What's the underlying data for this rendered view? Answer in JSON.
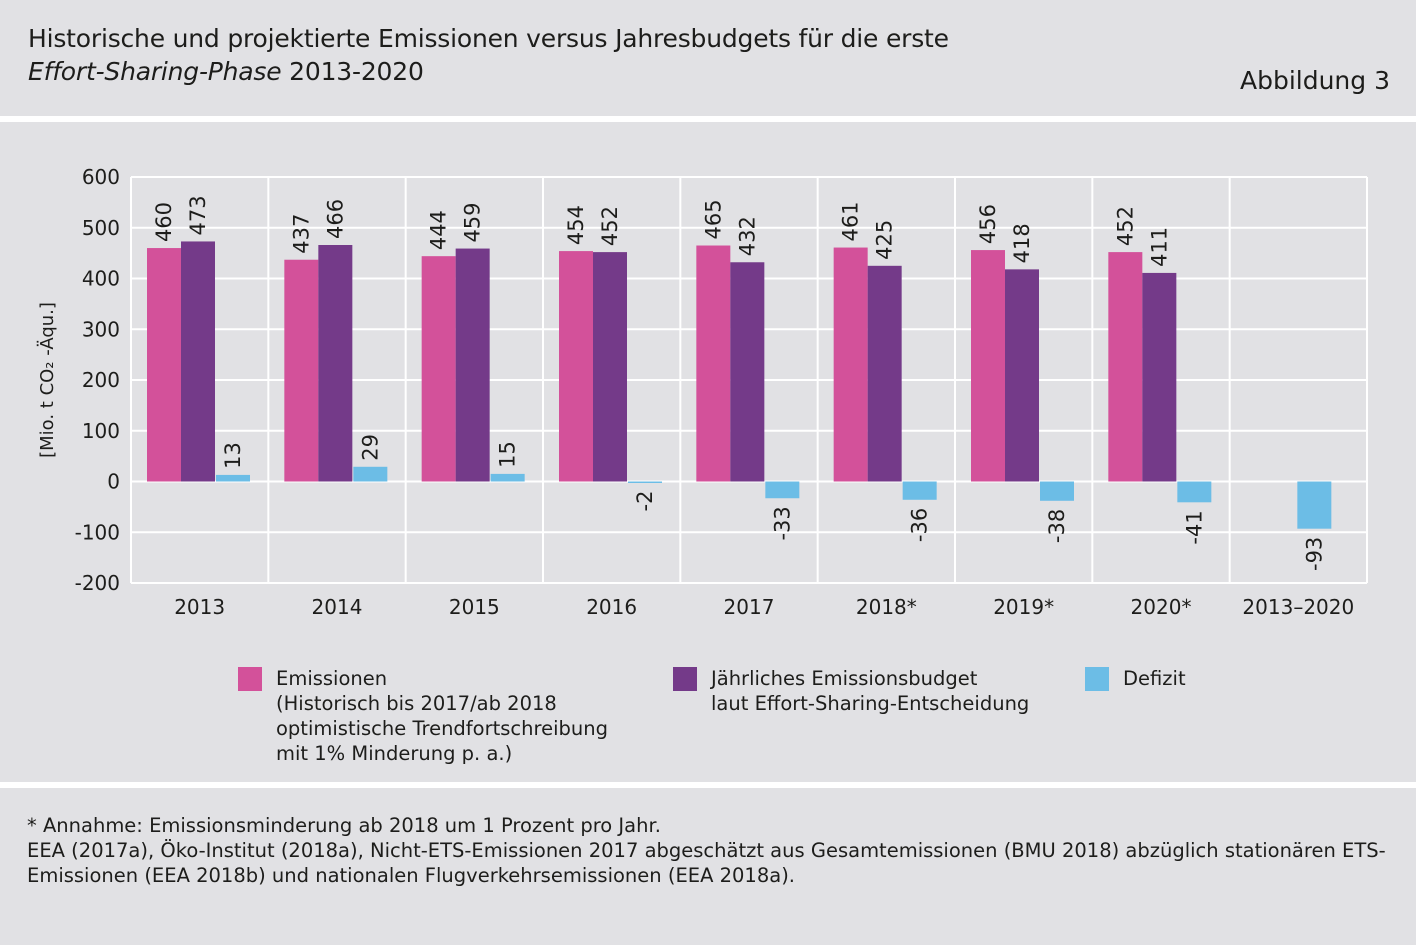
{
  "header": {
    "title_line1": "Historische und projektierte Emissionen versus Jahresbudgets für die erste",
    "title_line2_italic": "Effort-Sharing-Phase",
    "title_line2_rest": " 2013-2020",
    "figure_label": "Abbildung 3"
  },
  "legend": {
    "emissions": {
      "lines": [
        "Emissionen",
        "(Historisch bis 2017/ab 2018",
        "optimistische Trendfortschreibung",
        "mit 1% Minderung p. a.)"
      ],
      "color": "#d3519a"
    },
    "budget": {
      "lines": [
        "Jährliches Emissionsbudget",
        "laut Effort-Sharing-Entscheidung"
      ],
      "color": "#743a89"
    },
    "deficit": {
      "lines": [
        "Defizit"
      ],
      "color": "#6cbde6"
    }
  },
  "chart_data": {
    "type": "bar",
    "categories": [
      "2013",
      "2014",
      "2015",
      "2016",
      "2017",
      "2018*",
      "2019*",
      "2020*",
      "2013–2020"
    ],
    "series": [
      {
        "name": "Emissionen",
        "color": "#d3519a",
        "values": [
          460,
          437,
          444,
          454,
          465,
          461,
          456,
          452,
          null
        ]
      },
      {
        "name": "Jährliches Emissionsbudget",
        "color": "#743a89",
        "values": [
          473,
          466,
          459,
          452,
          432,
          425,
          418,
          411,
          null
        ]
      },
      {
        "name": "Defizit",
        "color": "#6cbde6",
        "values": [
          13,
          29,
          15,
          -2,
          -33,
          -36,
          -38,
          -41,
          -93
        ]
      }
    ],
    "ylabel": "[Mio. t CO₂ -Äqu.]",
    "ylim": [
      -200,
      600
    ],
    "yticks": [
      600,
      500,
      400,
      300,
      200,
      100,
      0,
      -100,
      -200
    ],
    "ytick_labels": [
      "600",
      "500",
      "400",
      "300",
      "200",
      "100",
      "0",
      "-100",
      "-200"
    ],
    "grid": true,
    "legend_position": "bottom"
  },
  "footer": {
    "note": "* Annahme: Emissionsminderung ab 2018 um 1 Prozent pro Jahr.",
    "source_line1": "EEA (2017a), Öko-Institut (2018a), Nicht-ETS-Emissionen 2017 abgeschätzt aus Gesamtemissionen (BMU 2018) abzüglich stationären ETS-",
    "source_line2": "Emissionen (EEA 2018b) und nationalen Flugverkehrsemissionen (EEA 2018a)."
  }
}
